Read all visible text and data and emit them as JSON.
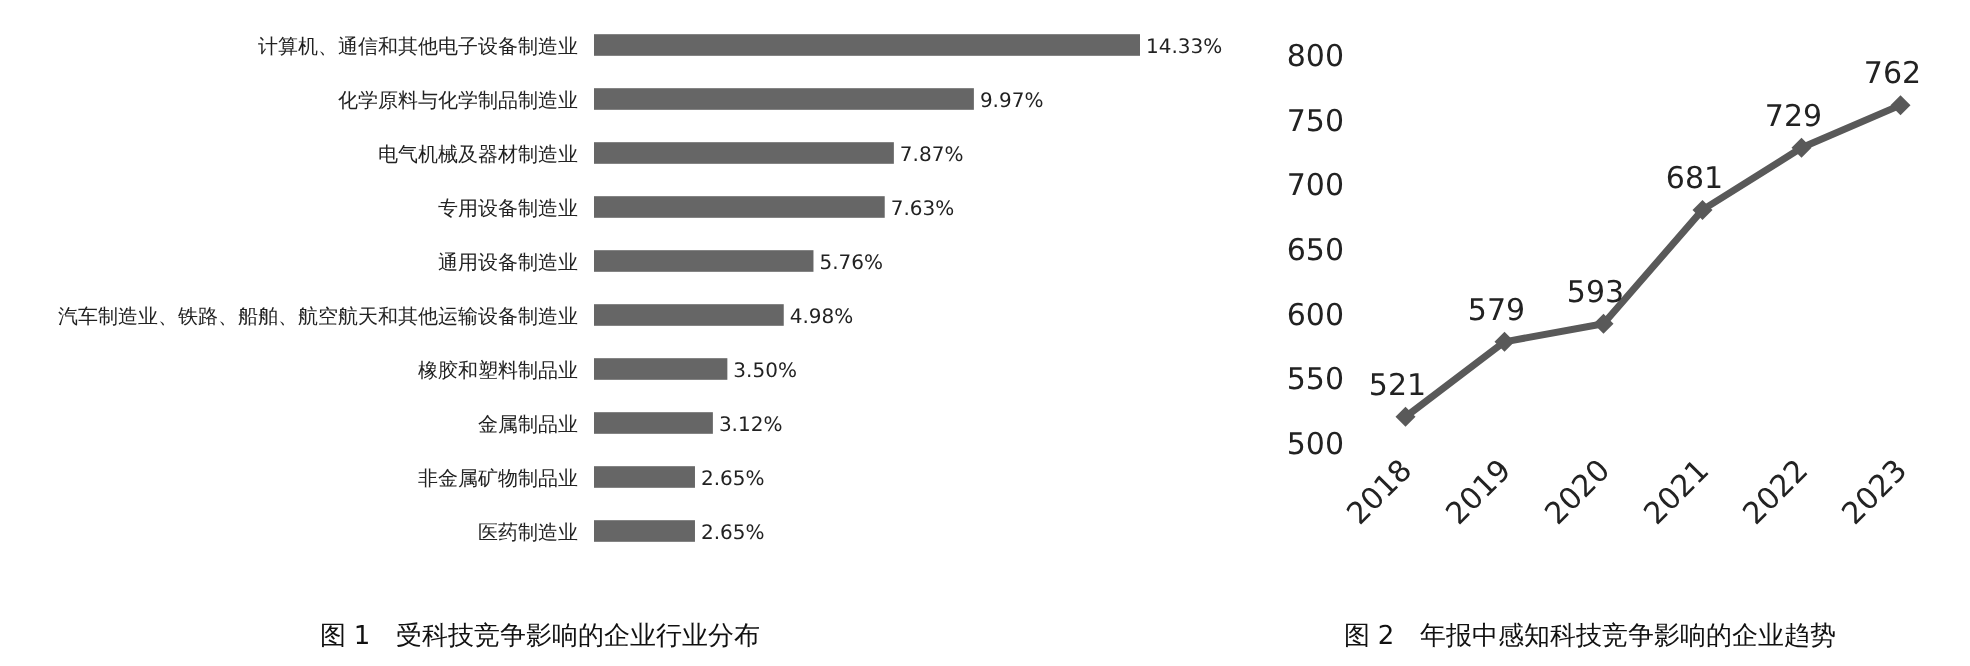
{
  "chart_data": [
    {
      "type": "bar",
      "orientation": "horizontal",
      "title": "图 1　受科技竞争影响的企业行业分布",
      "categories": [
        "计算机、通信和其他电子设备制造业",
        "化学原料与化学制品制造业",
        "电气机械及器材制造业",
        "专用设备制造业",
        "通用设备制造业",
        "汽车制造业、铁路、船舶、航空航天和其他运输设备制造业",
        "橡胶和塑料制品业",
        "金属制品业",
        "非金属矿物制品业",
        "医药制造业"
      ],
      "values": [
        14.33,
        9.97,
        7.87,
        7.63,
        5.76,
        4.98,
        3.5,
        3.12,
        2.65,
        2.65
      ],
      "value_labels": [
        "14.33%",
        "9.97%",
        "7.87%",
        "7.63%",
        "5.76%",
        "4.98%",
        "3.50%",
        "3.12%",
        "2.65%",
        "2.65%"
      ],
      "color": "#666666"
    },
    {
      "type": "line",
      "title": "图 2　年报中感知科技竞争影响的企业趋势",
      "categories": [
        "2018",
        "2019",
        "2020",
        "2021",
        "2022",
        "2023"
      ],
      "values": [
        521,
        579,
        593,
        681,
        729,
        762
      ],
      "color": "#595959",
      "marker": "diamond",
      "data_labels": true,
      "ylim": [
        500,
        800
      ],
      "yticks": [
        500,
        550,
        600,
        650,
        700,
        750,
        800
      ]
    }
  ]
}
